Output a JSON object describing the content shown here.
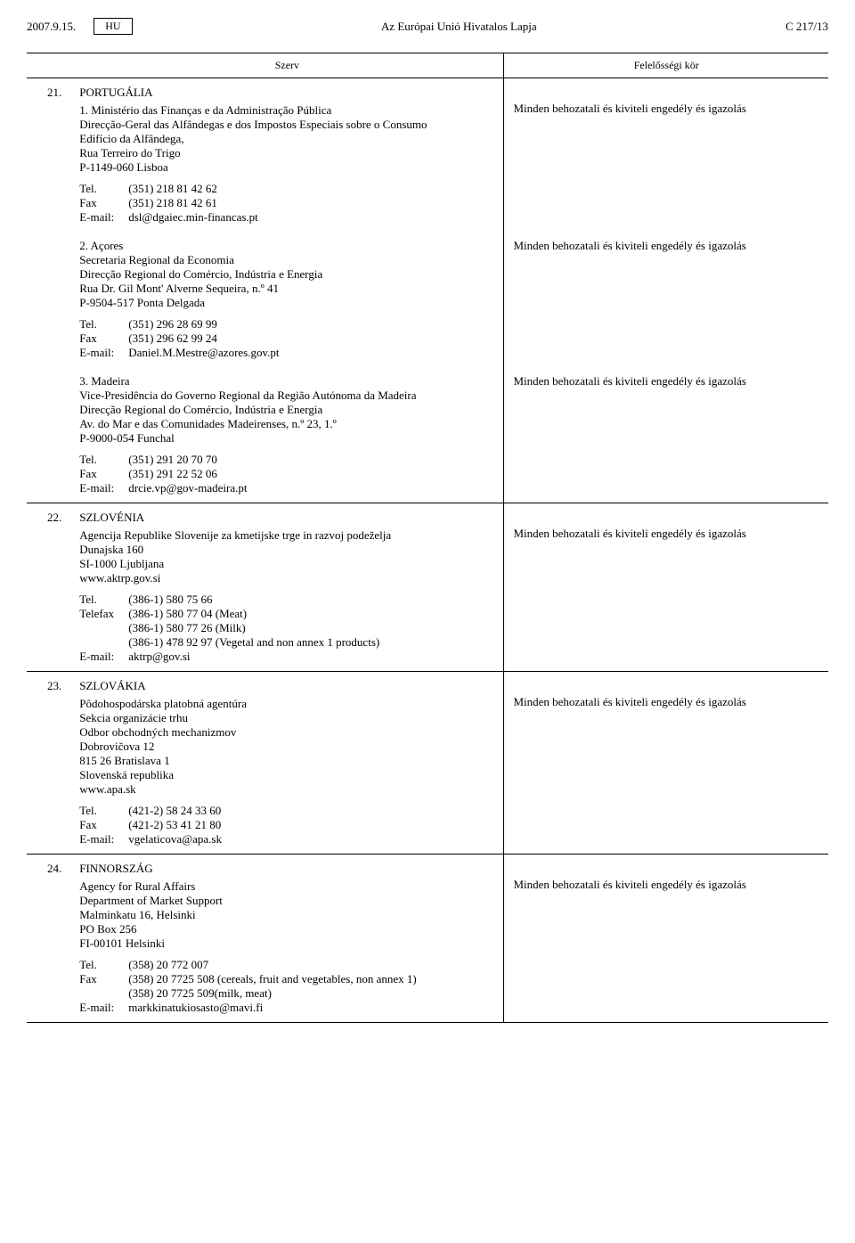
{
  "header": {
    "date": "2007.9.15.",
    "lang": "HU",
    "journal": "Az Európai Unió Hivatalos Lapja",
    "page": "C 217/13"
  },
  "table_headers": {
    "szerv": "Szerv",
    "kor": "Felelősségi kör"
  },
  "responsibility_text": "Minden behozatali és kiviteli engedély és igazolás",
  "rows": [
    {
      "num": "21.",
      "country": "PORTUGÁLIA",
      "entries": [
        {
          "sub": "1.",
          "lines": [
            "Ministério das Finanças e da Administração Pública",
            "Direcção-Geral das Alfândegas e dos Impostos Especiais sobre o Consumo",
            "Edifício da Alfândega,",
            "Rua Terreiro do Trigo",
            "P-1149-060 Lisboa"
          ],
          "contacts": [
            {
              "label": "Tel.",
              "value": "(351) 218 81 42 62"
            },
            {
              "label": "Fax",
              "value": "(351) 218 81 42 61"
            },
            {
              "label": "E-mail:",
              "value": "dsl@dgaiec.min-financas.pt"
            }
          ]
        },
        {
          "sub": "2.",
          "lines": [
            "Açores",
            "Secretaria Regional da Economia",
            "Direcção Regional do Comércio, Indústria e Energia",
            "Rua Dr. Gil Mont' Alverne Sequeira, n.º 41",
            "P-9504-517 Ponta Delgada"
          ],
          "contacts": [
            {
              "label": "Tel.",
              "value": "(351) 296 28 69 99"
            },
            {
              "label": "Fax",
              "value": "(351) 296 62 99 24"
            },
            {
              "label": "E-mail:",
              "value": "Daniel.M.Mestre@azores.gov.pt"
            }
          ]
        },
        {
          "sub": "3.",
          "lines_justify": [
            "Madeira",
            "Vice-Presidência do Governo Regional da Região Autónoma da Madeira",
            "Direcção Regional do Comércio, Indústria e Energia",
            "Av. do Mar e das Comunidades Madeirenses, n.º 23, 1.º",
            "P-9000-054 Funchal"
          ],
          "contacts": [
            {
              "label": "Tel.",
              "value": "(351) 291 20 70 70"
            },
            {
              "label": "Fax",
              "value": "(351) 291 22 52 06"
            },
            {
              "label": "E-mail:",
              "value": "drcie.vp@gov-madeira.pt"
            }
          ]
        }
      ]
    },
    {
      "num": "22.",
      "country": "SZLOVÉNIA",
      "entries": [
        {
          "lines": [
            "Agencija Republike Slovenije za kmetijske trge in razvoj podeželja",
            "Dunajska 160",
            "SI-1000 Ljubljana",
            "www.aktrp.gov.si"
          ],
          "contacts": [
            {
              "label": "Tel.",
              "value": "(386-1) 580 75 66"
            },
            {
              "label": "Telefax",
              "value": "(386-1) 580 77 04 (Meat)\n(386-1) 580 77 26 (Milk)\n(386-1) 478 92 97 (Vegetal and non annex 1 products)",
              "justify": true
            },
            {
              "label": "E-mail:",
              "value": "aktrp@gov.si"
            }
          ]
        }
      ]
    },
    {
      "num": "23.",
      "country": "SZLOVÁKIA",
      "entries": [
        {
          "lines": [
            "Pôdohospodárska platobná agentúra",
            "Sekcia organizácie trhu",
            "Odbor obchodných mechanizmov",
            "Dobrovičova 12",
            "815 26 Bratislava 1",
            "Slovenská republika",
            "www.apa.sk"
          ],
          "contacts": [
            {
              "label": "Tel.",
              "value": "(421-2) 58 24 33 60"
            },
            {
              "label": "Fax",
              "value": "(421-2) 53 41 21 80"
            },
            {
              "label": "E-mail:",
              "value": "vgelaticova@apa.sk"
            }
          ]
        }
      ]
    },
    {
      "num": "24.",
      "country": "FINNORSZÁG",
      "entries": [
        {
          "lines": [
            "Agency for Rural Affairs",
            "Department of Market Support",
            "Malminkatu 16, Helsinki",
            "PO Box 256",
            "FI-00101 Helsinki"
          ],
          "contacts": [
            {
              "label": "Tel.",
              "value": "(358) 20 772 007"
            },
            {
              "label": "Fax",
              "value": "(358) 20 7725 508 (cereals, fruit and vegetables, non annex 1)\n(358) 20 7725 509(milk, meat)"
            },
            {
              "label": "E-mail:",
              "value": "markkinatukiosasto@mavi.fi"
            }
          ]
        }
      ]
    }
  ]
}
